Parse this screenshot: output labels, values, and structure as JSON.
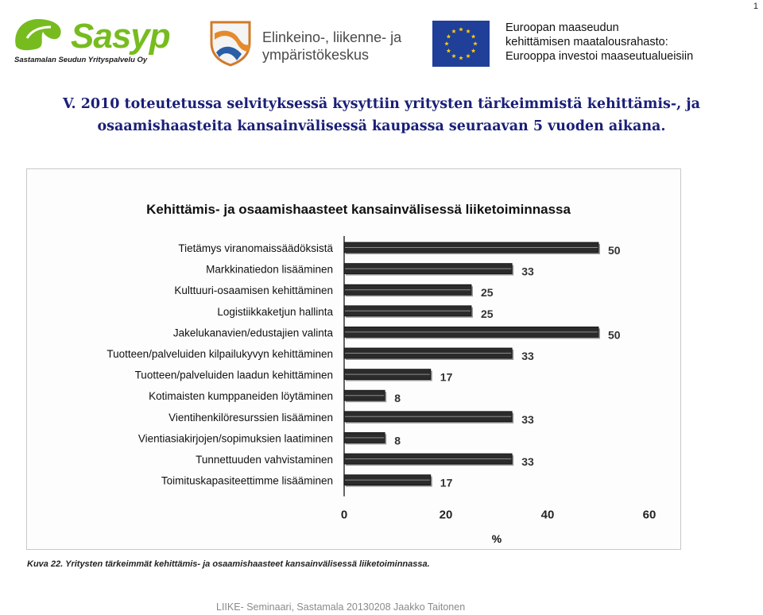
{
  "page_number": "1",
  "logos": {
    "sasyp_name": "Sasyp",
    "sasyp_subtitle": "Sastamalan Seudun Yrityspalvelu Oy",
    "ely_line1": "Elinkeino-, liikenne- ja",
    "ely_line2": "ympäristökeskus",
    "eu_line1": "Euroopan maaseudun",
    "eu_line2": "kehittämisen maatalousrahasto:",
    "eu_line3": "Eurooppa investoi maaseutualueisiin"
  },
  "slide": {
    "title_line1": "V. 2010 toteutetussa selvityksessä kysyttiin yritysten tärkeimmistä kehittämis-, ja",
    "title_line2": "osaamishaasteita kansainvälisessä kaupassa seuraavan 5 vuoden aikana."
  },
  "chart_data": {
    "type": "bar",
    "orientation": "horizontal",
    "title": "Kehittämis- ja osaamishaasteet kansainvälisessä liiketoiminnassa",
    "xlabel": "%",
    "ylabel": "",
    "xlim": [
      0,
      60
    ],
    "xticks": [
      0,
      20,
      40,
      60
    ],
    "grid": false,
    "categories": [
      "Tietämys viranomaissäädöksistä",
      "Markkinatiedon lisääminen",
      "Kulttuuri-osaamisen kehittäminen",
      "Logistiikkaketjun hallinta",
      "Jakelukanavien/edustajien valinta",
      "Tuotteen/palveluiden kilpailukyvyn kehittäminen",
      "Tuotteen/palveluiden laadun kehittäminen",
      "Kotimaisten kumppaneiden löytäminen",
      "Vientihenkilöresurssien lisääminen",
      "Vientiasiakirjojen/sopimuksien laatiminen",
      "Tunnettuuden vahvistaminen",
      "Toimituskapasiteettimme lisääminen"
    ],
    "values": [
      50,
      33,
      25,
      25,
      50,
      33,
      17,
      8,
      33,
      8,
      33,
      17
    ],
    "caption": "Kuva 22. Yritysten tärkeimmät kehittämis- ja osaamishaasteet kansainvälisessä liiketoiminnassa."
  },
  "footer": "LIIKE- Seminaari, Sastamala 20130208   Jaakko Taitonen"
}
